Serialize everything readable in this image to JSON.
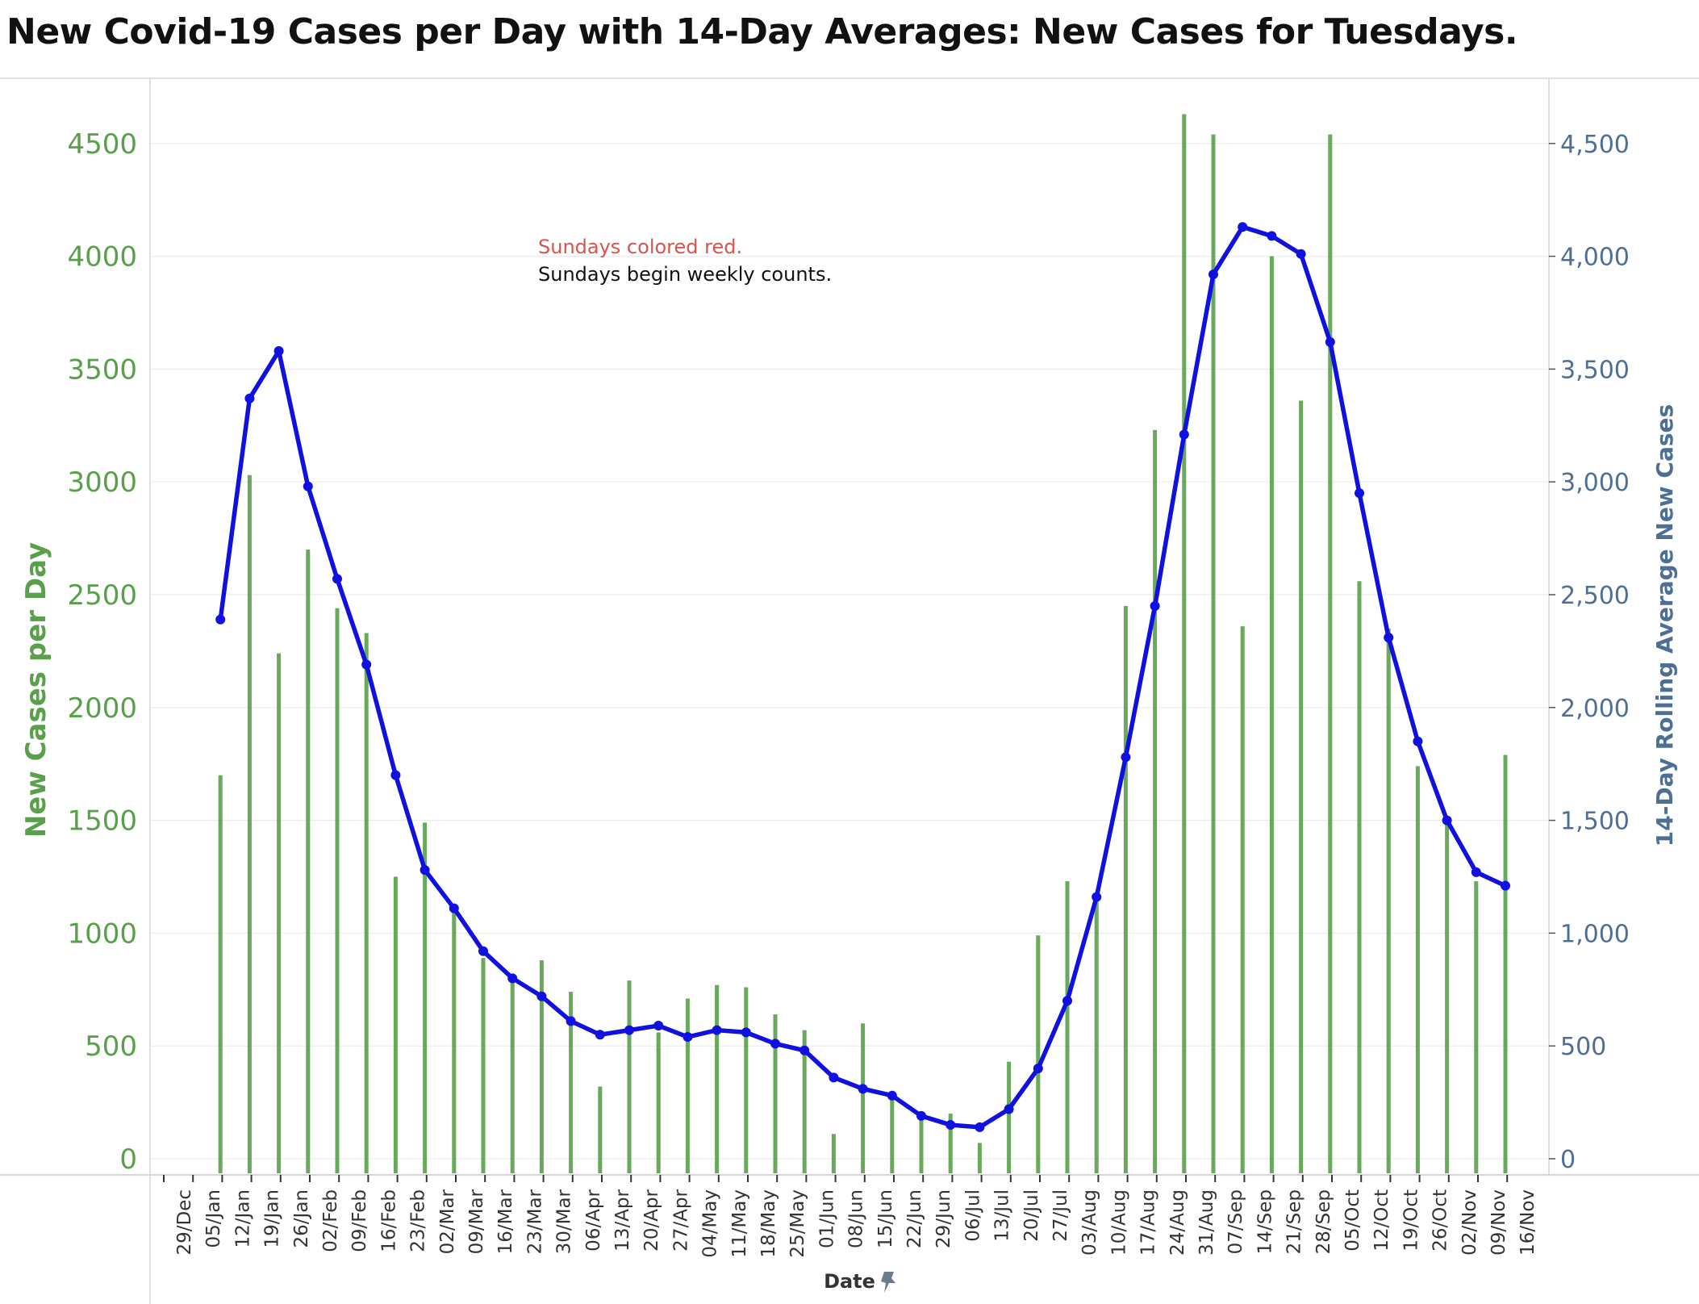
{
  "chart_data": {
    "type": "bar+line",
    "title": "New Covid-19 Cases per Day with 14-Day Averages: New Cases for Tuesdays.",
    "xlabel": "Date",
    "ylabel_left": "New Cases per Day",
    "ylabel_right": "14-Day Rolling Average New Cases",
    "ylim_left": [
      0,
      4800
    ],
    "ylim_right": [
      0,
      4800
    ],
    "yticks_left": [
      "0",
      "500",
      "1000",
      "1500",
      "2000",
      "2500",
      "3000",
      "3500",
      "4000",
      "4500"
    ],
    "yticks_right": [
      "0",
      "500",
      "1,000",
      "1,500",
      "2,000",
      "2,500",
      "3,000",
      "3,500",
      "4,000",
      "4,500"
    ],
    "categories": [
      "29/Dec",
      "05/Jan",
      "12/Jan",
      "19/Jan",
      "26/Jan",
      "02/Feb",
      "09/Feb",
      "16/Feb",
      "23/Feb",
      "02/Mar",
      "09/Mar",
      "16/Mar",
      "23/Mar",
      "30/Mar",
      "06/Apr",
      "13/Apr",
      "20/Apr",
      "27/Apr",
      "04/May",
      "11/May",
      "18/May",
      "25/May",
      "01/Jun",
      "08/Jun",
      "15/Jun",
      "22/Jun",
      "29/Jun",
      "06/Jul",
      "13/Jul",
      "20/Jul",
      "27/Jul",
      "03/Aug",
      "10/Aug",
      "17/Aug",
      "24/Aug",
      "31/Aug",
      "07/Sep",
      "14/Sep",
      "21/Sep",
      "28/Sep",
      "05/Oct",
      "12/Oct",
      "19/Oct",
      "26/Oct",
      "02/Nov",
      "09/Nov",
      "16/Nov"
    ],
    "series": [
      {
        "name": "New Cases per Day",
        "kind": "bar",
        "color": "#4e9a3e",
        "values": [
          null,
          1700,
          3030,
          2240,
          2700,
          2440,
          2330,
          1250,
          1490,
          1090,
          890,
          800,
          880,
          740,
          320,
          790,
          560,
          710,
          770,
          760,
          640,
          570,
          110,
          600,
          270,
          210,
          200,
          70,
          430,
          990,
          1230,
          1140,
          2450,
          3230,
          4630,
          4540,
          2360,
          4000,
          3360,
          4540,
          2560,
          2350,
          1740,
          1480,
          1230,
          1790,
          null
        ]
      },
      {
        "name": "14-Day Rolling Average New Cases",
        "kind": "line",
        "color": "#1010e0",
        "values": [
          null,
          2390,
          3370,
          3580,
          2980,
          2570,
          2190,
          1700,
          1280,
          1110,
          920,
          800,
          720,
          610,
          550,
          570,
          590,
          540,
          570,
          560,
          510,
          480,
          360,
          310,
          280,
          190,
          150,
          140,
          220,
          400,
          700,
          1160,
          1780,
          2450,
          3210,
          3920,
          4130,
          4090,
          4010,
          3620,
          2950,
          2310,
          1850,
          1500,
          1270,
          1210,
          null
        ]
      }
    ],
    "annotations": [
      {
        "text": "Sundays colored red.",
        "color": "#d9534f"
      },
      {
        "text": "Sundays begin weekly counts.",
        "color": "#111111"
      }
    ],
    "grid": true,
    "legend": "none"
  }
}
